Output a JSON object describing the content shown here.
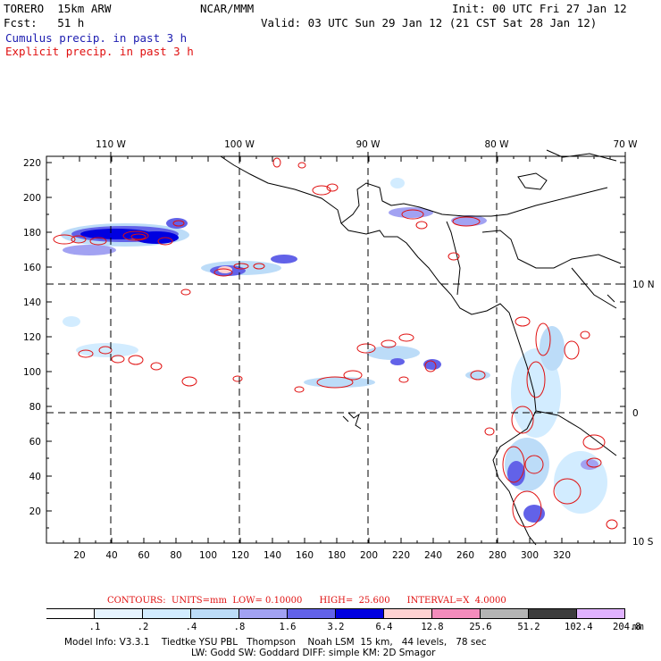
{
  "header": {
    "model": "TORERO  15km ARW",
    "org": "NCAR/MMM",
    "init": "Init: 00 UTC Fri 27 Jan 12",
    "fcst": "Fcst:   51 h",
    "valid": "Valid: 03 UTC Sun 29 Jan 12 (21 CST Sat 28 Jan 12)",
    "field1": "Cumulus precip. in past 3 h",
    "field2": "Explicit precip. in past 3 h"
  },
  "map": {
    "lon_labels": [
      "110 W",
      "100 W",
      "90 W",
      "80 W",
      "70 W"
    ],
    "lat_labels": [
      "10 N",
      "0",
      "10 S"
    ],
    "y_ticks": [
      "220",
      "200",
      "180",
      "160",
      "140",
      "120",
      "100",
      "80",
      "60",
      "40",
      "20"
    ],
    "x_ticks": [
      "20",
      "40",
      "60",
      "80",
      "100",
      "120",
      "140",
      "160",
      "180",
      "200",
      "220",
      "240",
      "260",
      "280",
      "300",
      "320"
    ]
  },
  "contours": {
    "text": "CONTOURS:  UNITS=mm  LOW= 0.10000      HIGH=  25.600      INTERVAL=X  4.0000"
  },
  "colorbar": {
    "labels": [
      ".1",
      ".2",
      ".4",
      ".8",
      "1.6",
      "3.2",
      "6.4",
      "12.8",
      "25.6",
      "51.2",
      "102.4",
      "204.8"
    ],
    "unit": "mm",
    "colors": [
      "#ffffff",
      "#e6f4ff",
      "#d2ecff",
      "#bcdcf8",
      "#a2a2f2",
      "#6262e8",
      "#0000e0",
      "#fed2d2",
      "#f48cbc",
      "#b4b4b4",
      "#3c3c3c",
      "#e0b2ff"
    ]
  },
  "model_info": {
    "line1": "Model Info: V3.3.1    Tiedtke YSU PBL   Thompson    Noah LSM  15 km,   44 levels,   78 sec",
    "line2": "LW: Godd SW: Goddard DIFF: simple KM: 2D Smagor"
  }
}
